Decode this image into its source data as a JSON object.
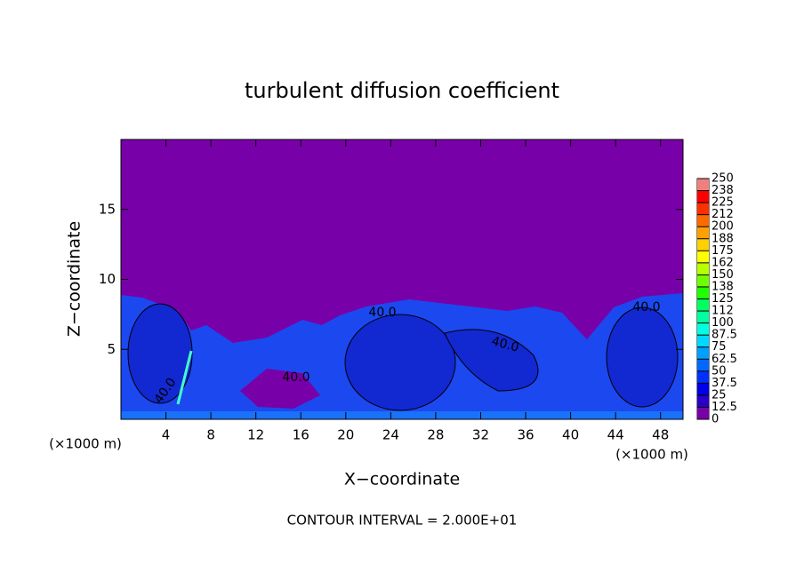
{
  "chart_data": {
    "type": "contour",
    "title": "turbulent diffusion coefficient",
    "xlabel": "X−coordinate",
    "ylabel": "Z−coordinate",
    "x_unit_left": "(×1000 m)",
    "x_unit_right": "(×1000 m)",
    "footnote": "CONTOUR INTERVAL = 2.000E+01",
    "xlim": [
      0,
      50
    ],
    "xticks": [
      4,
      8,
      12,
      16,
      20,
      24,
      28,
      32,
      36,
      40,
      44,
      48
    ],
    "ylim": [
      0,
      20
    ],
    "yticks": [
      5,
      10,
      15
    ],
    "clim": [
      0,
      250
    ],
    "cticks": [
      0,
      12.5,
      25,
      37.5,
      50,
      62.5,
      75,
      87.5,
      100,
      {
        "value": 112.5,
        "label": "112"
      },
      125,
      {
        "value": 137.5,
        "label": "138"
      },
      150,
      {
        "value": 162.5,
        "label": "162"
      },
      175,
      {
        "value": 187.5,
        "label": "188"
      },
      200,
      {
        "value": 212.5,
        "label": "212"
      },
      225,
      {
        "value": 237.5,
        "label": "238"
      },
      250
    ],
    "colorbar_colors": [
      "#7800a8",
      "#2a00c8",
      "#0000e6",
      "#0030ff",
      "#0068ff",
      "#00a0ff",
      "#00d8ff",
      "#00ffe0",
      "#00ffa0",
      "#00ff60",
      "#20ff00",
      "#70ff00",
      "#b8ff00",
      "#ffff00",
      "#ffd000",
      "#ffa000",
      "#ff6a00",
      "#ff3000",
      "#ff0000",
      "#f08080"
    ],
    "contour_labels": [
      "40.0",
      "40.0",
      "40.0",
      "40.0",
      "40.0"
    ]
  }
}
